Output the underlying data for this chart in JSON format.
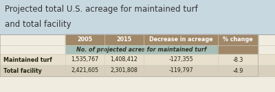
{
  "title_line1": "Projected total U.S. acreage for maintained turf",
  "title_line2": "and total facility",
  "title_bg": "#c8d8e0",
  "header_bg": "#a08868",
  "subheader_bg": "#a8bfb8",
  "row1_bg": "#e8e0cc",
  "row2_bg": "#d8d0bc",
  "white_bg": "#f0ece0",
  "col_headers": [
    "2005",
    "2015",
    "Decrease in acreage",
    "% change"
  ],
  "subheader": "No. of projected acres for maintained turf",
  "row_labels": [
    "Maintained turf",
    "Total facility"
  ],
  "rows": [
    [
      "1,535,767",
      "1,408,412",
      "-127,355",
      "-8.3"
    ],
    [
      "2,421,605",
      "2,301,808",
      "-119,797",
      "-4.9"
    ]
  ],
  "header_text_color": "#ffffff",
  "subheader_text_color": "#333322",
  "cell_text_color": "#222211",
  "label_text_color": "#222211",
  "title_text_color": "#333333",
  "font_size_title": 8.5,
  "font_size_header": 5.8,
  "font_size_subheader": 5.8,
  "font_size_cell": 5.8,
  "outer_border_color": "#aaaaaa",
  "grid_color": "#ccccbb"
}
